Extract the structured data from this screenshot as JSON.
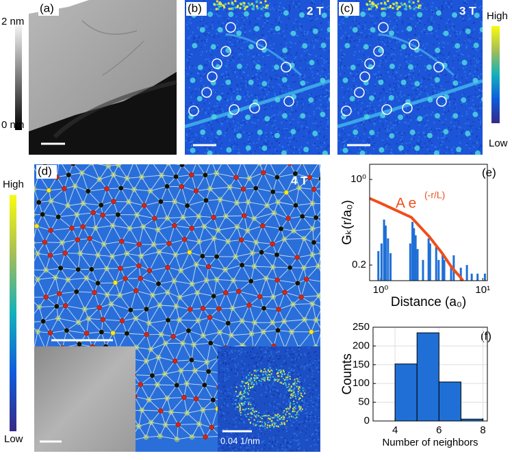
{
  "figure": {
    "panel_labels": [
      "(a)",
      "(b)",
      "(c)",
      "(d)",
      "(e)",
      "(f)"
    ],
    "fields": [
      "2 T",
      "3 T",
      "4 T"
    ],
    "colorbar_a": [
      "2 nm",
      "0 nm"
    ],
    "colorbar_bc": [
      "High",
      "Low"
    ],
    "colorbar_d": [
      "High",
      "Low"
    ],
    "fft_scale": "0.04 1/nm"
  },
  "chart_data": [
    {
      "type": "bar",
      "log_x": true,
      "log_y": true,
      "x": [
        0.95,
        1.02,
        1.08,
        1.12,
        1.18,
        1.25,
        1.95,
        2.05,
        2.12,
        2.2,
        2.3,
        2.6,
        2.95,
        3.05,
        3.5,
        3.7,
        4.05,
        4.2,
        4.9,
        5.2,
        6.1,
        7.0,
        7.8,
        8.9,
        10.5
      ],
      "values": [
        0.26,
        0.3,
        0.47,
        0.42,
        0.33,
        0.25,
        0.3,
        0.45,
        0.4,
        0.35,
        0.27,
        0.22,
        0.33,
        0.3,
        0.28,
        0.22,
        0.25,
        0.22,
        0.2,
        0.24,
        0.19,
        0.2,
        0.17,
        0.17,
        0.17
      ],
      "color": "#1f6fd6",
      "fit": {
        "x": [
          0.78,
          1,
          2,
          3,
          4,
          5,
          6,
          6.4
        ],
        "values": [
          0.7,
          0.64,
          0.49,
          0.34,
          0.25,
          0.19,
          0.16,
          0.149
        ],
        "color": "#f04e1b"
      },
      "annotation": "A e",
      "annotation_sup": "(-r/L)",
      "xlabel": "Distance (a₀)",
      "ylabel": "Gₖ(r/a₀)",
      "xlim": [
        0.78,
        11.1
      ],
      "ylim": [
        0.149,
        1.33
      ],
      "xticks": [
        {
          "value": 1,
          "label": "10⁰"
        },
        {
          "value": 10,
          "label": "10¹"
        }
      ],
      "yticks": [
        {
          "value": 1,
          "label": "10⁰"
        },
        0.2
      ],
      "grid": false
    },
    {
      "type": "histogram",
      "bins": [
        4,
        5,
        6,
        7,
        8
      ],
      "values": [
        152,
        235,
        104,
        5
      ],
      "color": "#1f6fd6",
      "xlabel": "Number of neighbors",
      "ylabel": "Counts",
      "xlim": [
        3,
        8.2
      ],
      "ylim": [
        0,
        250
      ],
      "xticks": [
        4,
        6,
        8
      ],
      "yticks": [
        0,
        50,
        100,
        150,
        200,
        250
      ],
      "grid": true
    }
  ]
}
